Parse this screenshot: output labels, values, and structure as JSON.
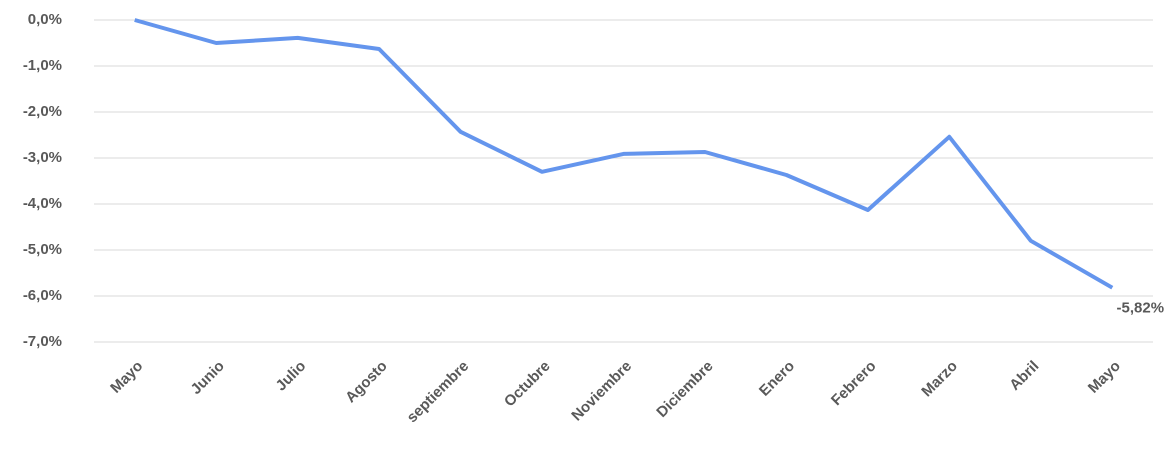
{
  "chart_data": {
    "type": "line",
    "categories": [
      "Mayo",
      "Junio",
      "Julio",
      "Agosto",
      "septiembre",
      "Octubre",
      "Noviembre",
      "Diciembre",
      "Enero",
      "Febrero",
      "Marzo",
      "Abril",
      "Mayo"
    ],
    "values": [
      0,
      -0.5,
      -0.39,
      -0.63,
      -2.43,
      -3.3,
      -2.91,
      -2.87,
      -3.37,
      -4.13,
      -2.54,
      -4.8,
      -5.82
    ],
    "value_labels": [
      null,
      null,
      null,
      null,
      null,
      null,
      null,
      null,
      null,
      null,
      null,
      null,
      "-5,82%"
    ],
    "color": "#6495ed",
    "ylim": [
      -7,
      0
    ],
    "yticks": [
      {
        "value": 0,
        "label": "0,0%"
      },
      {
        "value": -1,
        "label": "-1,0%"
      },
      {
        "value": -2,
        "label": "-2,0%"
      },
      {
        "value": -3,
        "label": "-3,0%"
      },
      {
        "value": -4,
        "label": "-4,0%"
      },
      {
        "value": -5,
        "label": "-5,0%"
      },
      {
        "value": -6,
        "label": "-6,0%"
      },
      {
        "value": -7,
        "label": "-7,0%"
      }
    ],
    "grid": true
  }
}
